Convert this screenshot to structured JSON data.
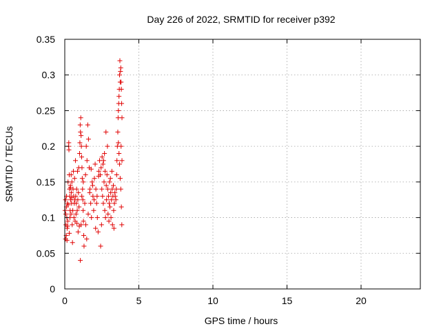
{
  "chart_data": {
    "type": "scatter",
    "title": "Day 226 of 2022, SRMTID for receiver p392",
    "xlabel": "GPS time / hours",
    "ylabel": "SRMTID / TECUs",
    "xlim": [
      0,
      24
    ],
    "ylim": [
      0,
      0.35
    ],
    "grid": true,
    "x_ticks": [
      0,
      5,
      10,
      15,
      20
    ],
    "y_ticks": [
      0,
      0.05,
      0.1,
      0.15,
      0.2,
      0.25,
      0.3,
      0.35
    ],
    "x_tick_labels": [
      "0",
      "5",
      "10",
      "15",
      "20"
    ],
    "y_tick_labels": [
      "0",
      "0.05",
      "0.1",
      "0.15",
      "0.2",
      "0.25",
      "0.3",
      "0.35"
    ],
    "marker": "+",
    "color": "#e00000",
    "series": [
      {
        "name": "p392",
        "points": [
          [
            0.02,
            0.11
          ],
          [
            0.05,
            0.125
          ],
          [
            0.08,
            0.09
          ],
          [
            0.1,
            0.075
          ],
          [
            0.12,
            0.13
          ],
          [
            0.14,
            0.1
          ],
          [
            0.16,
            0.085
          ],
          [
            0.18,
            0.12
          ],
          [
            0.2,
            0.095
          ],
          [
            0.22,
            0.15
          ],
          [
            0.05,
            0.07
          ],
          [
            0.07,
            0.105
          ],
          [
            0.11,
            0.115
          ],
          [
            0.15,
            0.068
          ],
          [
            0.19,
            0.088
          ],
          [
            0.23,
            0.118
          ],
          [
            0.26,
            0.2
          ],
          [
            0.27,
            0.205
          ],
          [
            0.28,
            0.195
          ],
          [
            0.3,
            0.16
          ],
          [
            0.32,
            0.14
          ],
          [
            0.34,
            0.13
          ],
          [
            0.36,
            0.11
          ],
          [
            0.38,
            0.145
          ],
          [
            0.4,
            0.125
          ],
          [
            0.42,
            0.105
          ],
          [
            0.44,
            0.135
          ],
          [
            0.46,
            0.12
          ],
          [
            0.48,
            0.15
          ],
          [
            0.5,
            0.09
          ],
          [
            0.31,
            0.078
          ],
          [
            0.35,
            0.1
          ],
          [
            0.39,
            0.142
          ],
          [
            0.43,
            0.16
          ],
          [
            0.47,
            0.128
          ],
          [
            0.52,
            0.065
          ],
          [
            0.54,
            0.11
          ],
          [
            0.56,
            0.14
          ],
          [
            0.58,
            0.165
          ],
          [
            0.6,
            0.13
          ],
          [
            0.62,
            0.1
          ],
          [
            0.64,
            0.12
          ],
          [
            0.66,
            0.155
          ],
          [
            0.68,
            0.125
          ],
          [
            0.7,
            0.095
          ],
          [
            0.72,
            0.18
          ],
          [
            0.74,
            0.13
          ],
          [
            0.76,
            0.105
          ],
          [
            0.78,
            0.12
          ],
          [
            0.8,
            0.14
          ],
          [
            0.82,
            0.092
          ],
          [
            0.84,
            0.11
          ],
          [
            0.86,
            0.165
          ],
          [
            0.88,
            0.125
          ],
          [
            0.9,
            0.08
          ],
          [
            0.92,
            0.135
          ],
          [
            0.94,
            0.17
          ],
          [
            0.96,
            0.115
          ],
          [
            0.98,
            0.088
          ],
          [
            1.0,
            0.19
          ],
          [
            1.02,
            0.205
          ],
          [
            1.04,
            0.23
          ],
          [
            1.06,
            0.22
          ],
          [
            1.08,
            0.24
          ],
          [
            1.1,
            0.215
          ],
          [
            1.12,
            0.2
          ],
          [
            1.14,
            0.185
          ],
          [
            1.16,
            0.17
          ],
          [
            1.18,
            0.155
          ],
          [
            1.2,
            0.14
          ],
          [
            1.22,
            0.125
          ],
          [
            1.24,
            0.11
          ],
          [
            1.26,
            0.095
          ],
          [
            1.28,
            0.075
          ],
          [
            1.3,
            0.06
          ],
          [
            1.05,
            0.04
          ],
          [
            1.1,
            0.09
          ],
          [
            1.15,
            0.13
          ],
          [
            1.25,
            0.15
          ],
          [
            1.35,
            0.12
          ],
          [
            1.4,
            0.16
          ],
          [
            1.45,
            0.2
          ],
          [
            1.5,
            0.18
          ],
          [
            1.55,
            0.23
          ],
          [
            1.6,
            0.21
          ],
          [
            1.65,
            0.17
          ],
          [
            1.7,
            0.14
          ],
          [
            1.75,
            0.12
          ],
          [
            1.8,
            0.1
          ],
          [
            1.85,
            0.15
          ],
          [
            1.9,
            0.13
          ],
          [
            1.95,
            0.11
          ],
          [
            2.0,
            0.155
          ],
          [
            2.05,
            0.175
          ],
          [
            2.1,
            0.14
          ],
          [
            2.15,
            0.12
          ],
          [
            2.2,
            0.1
          ],
          [
            2.25,
            0.08
          ],
          [
            2.3,
            0.165
          ],
          [
            2.35,
            0.18
          ],
          [
            1.42,
            0.09
          ],
          [
            1.48,
            0.07
          ],
          [
            1.58,
            0.105
          ],
          [
            1.68,
            0.135
          ],
          [
            1.78,
            0.168
          ],
          [
            1.88,
            0.145
          ],
          [
            1.98,
            0.125
          ],
          [
            2.08,
            0.085
          ],
          [
            2.18,
            0.13
          ],
          [
            2.28,
            0.158
          ],
          [
            2.4,
            0.16
          ],
          [
            2.45,
            0.17
          ],
          [
            2.5,
            0.14
          ],
          [
            2.55,
            0.13
          ],
          [
            2.6,
            0.12
          ],
          [
            2.65,
            0.15
          ],
          [
            2.7,
            0.11
          ],
          [
            2.75,
            0.1
          ],
          [
            2.8,
            0.145
          ],
          [
            2.85,
            0.16
          ],
          [
            2.42,
            0.06
          ],
          [
            2.48,
            0.09
          ],
          [
            2.58,
            0.175
          ],
          [
            2.68,
            0.19
          ],
          [
            2.78,
            0.22
          ],
          [
            2.88,
            0.2
          ],
          [
            2.52,
            0.185
          ],
          [
            2.62,
            0.18
          ],
          [
            2.72,
            0.165
          ],
          [
            2.82,
            0.125
          ],
          [
            2.9,
            0.14
          ],
          [
            2.95,
            0.13
          ],
          [
            3.0,
            0.12
          ],
          [
            3.05,
            0.115
          ],
          [
            3.1,
            0.135
          ],
          [
            3.15,
            0.125
          ],
          [
            3.2,
            0.14
          ],
          [
            3.25,
            0.13
          ],
          [
            3.3,
            0.11
          ],
          [
            3.35,
            0.12
          ],
          [
            2.92,
            0.105
          ],
          [
            2.98,
            0.095
          ],
          [
            3.08,
            0.155
          ],
          [
            3.18,
            0.165
          ],
          [
            3.28,
            0.145
          ],
          [
            3.38,
            0.135
          ],
          [
            3.02,
            0.15
          ],
          [
            3.12,
            0.1
          ],
          [
            3.22,
            0.09
          ],
          [
            3.32,
            0.085
          ],
          [
            3.4,
            0.13
          ],
          [
            3.45,
            0.125
          ],
          [
            3.48,
            0.14
          ],
          [
            3.5,
            0.16
          ],
          [
            3.52,
            0.18
          ],
          [
            3.55,
            0.2
          ],
          [
            3.58,
            0.22
          ],
          [
            3.6,
            0.24
          ],
          [
            3.62,
            0.25
          ],
          [
            3.64,
            0.26
          ],
          [
            3.66,
            0.27
          ],
          [
            3.68,
            0.28
          ],
          [
            3.7,
            0.3
          ],
          [
            3.72,
            0.32
          ],
          [
            3.74,
            0.29
          ],
          [
            3.76,
            0.305
          ],
          [
            3.78,
            0.31
          ],
          [
            3.8,
            0.29
          ],
          [
            3.82,
            0.28
          ],
          [
            3.84,
            0.26
          ],
          [
            3.86,
            0.24
          ],
          [
            3.62,
            0.205
          ],
          [
            3.66,
            0.19
          ],
          [
            3.7,
            0.175
          ],
          [
            3.74,
            0.155
          ],
          [
            3.78,
            0.14
          ],
          [
            3.82,
            0.115
          ],
          [
            3.85,
            0.09
          ],
          [
            3.86,
            0.18
          ],
          [
            3.8,
            0.2
          ]
        ]
      }
    ]
  }
}
